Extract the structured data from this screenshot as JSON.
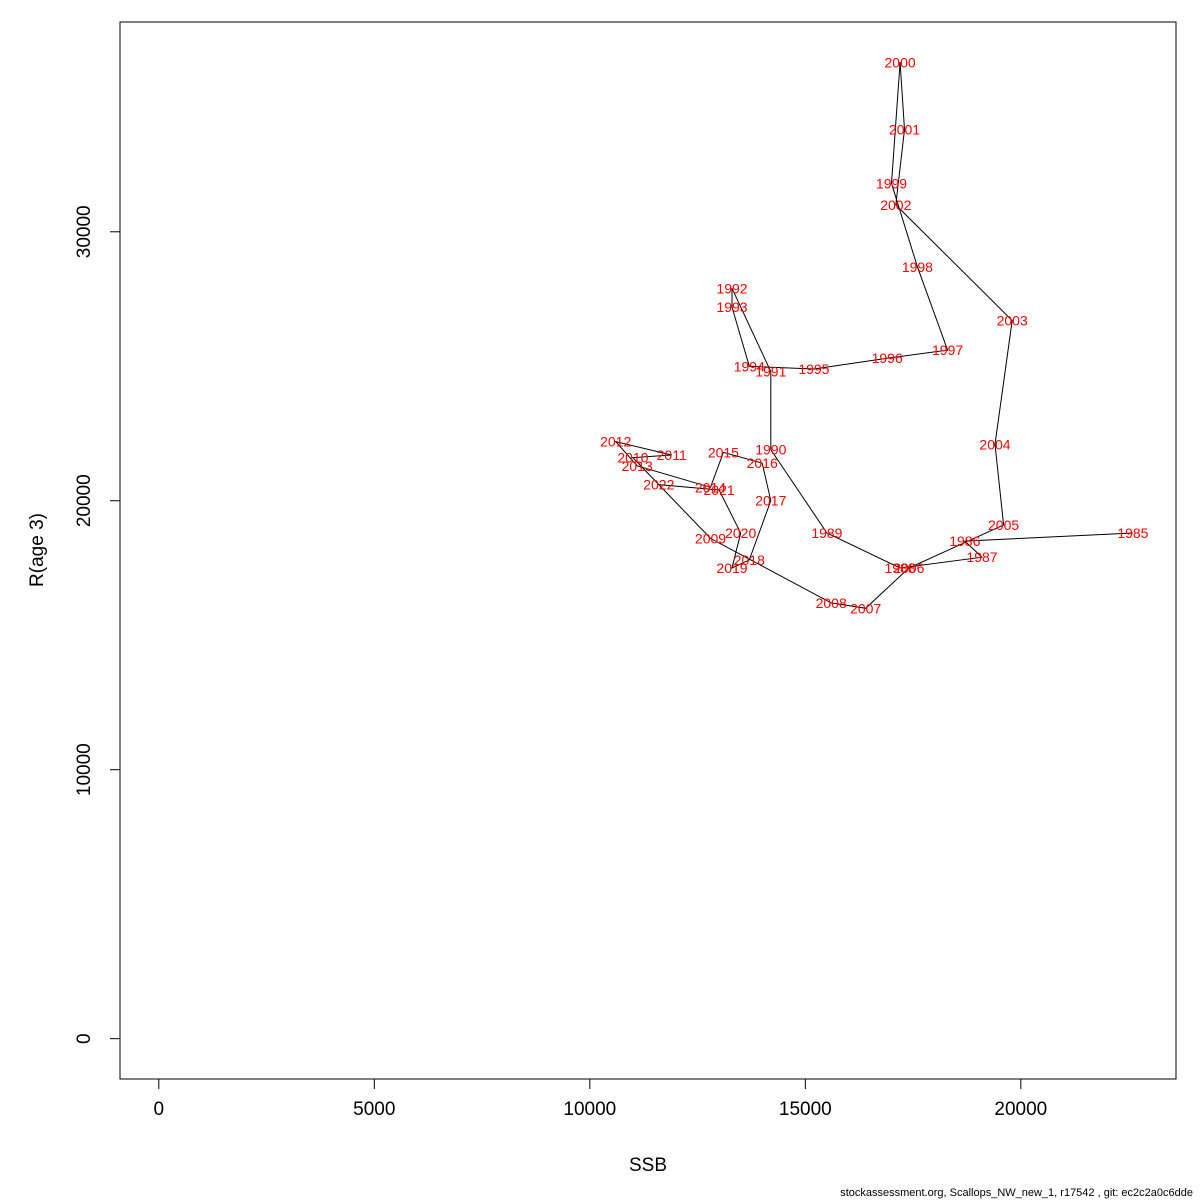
{
  "chart_data": {
    "type": "scatter",
    "xlabel": "SSB",
    "ylabel": "R(age 3)",
    "xlim": [
      -900,
      23600
    ],
    "ylim": [
      -1500,
      37800
    ],
    "xticks": [
      0,
      5000,
      10000,
      15000,
      20000
    ],
    "yticks": [
      0,
      10000,
      20000,
      30000
    ],
    "grid": false,
    "point_label_color": "#ff0000",
    "line_color": "#000000",
    "points": [
      {
        "label": "1985",
        "x": 22600,
        "y": 18800
      },
      {
        "label": "1986",
        "x": 18700,
        "y": 18500
      },
      {
        "label": "1987",
        "x": 19100,
        "y": 17900
      },
      {
        "label": "1988",
        "x": 17200,
        "y": 17500
      },
      {
        "label": "1989",
        "x": 15500,
        "y": 18800
      },
      {
        "label": "1990",
        "x": 14200,
        "y": 21900
      },
      {
        "label": "1991",
        "x": 14200,
        "y": 24800
      },
      {
        "label": "1992",
        "x": 13300,
        "y": 27900
      },
      {
        "label": "1993",
        "x": 13300,
        "y": 27200
      },
      {
        "label": "1994",
        "x": 13700,
        "y": 25000
      },
      {
        "label": "1995",
        "x": 15200,
        "y": 24900
      },
      {
        "label": "1996",
        "x": 16900,
        "y": 25300
      },
      {
        "label": "1997",
        "x": 18300,
        "y": 25600
      },
      {
        "label": "1998",
        "x": 17600,
        "y": 28700
      },
      {
        "label": "1999",
        "x": 17000,
        "y": 31800
      },
      {
        "label": "2000",
        "x": 17200,
        "y": 36300
      },
      {
        "label": "2001",
        "x": 17300,
        "y": 33800
      },
      {
        "label": "2002",
        "x": 17100,
        "y": 31000
      },
      {
        "label": "2003",
        "x": 19800,
        "y": 26700
      },
      {
        "label": "2004",
        "x": 19400,
        "y": 22100
      },
      {
        "label": "2005",
        "x": 19600,
        "y": 19100
      },
      {
        "label": "2006",
        "x": 17400,
        "y": 17500
      },
      {
        "label": "2007",
        "x": 16400,
        "y": 16000
      },
      {
        "label": "2008",
        "x": 15600,
        "y": 16200
      },
      {
        "label": "2009",
        "x": 12800,
        "y": 18600
      },
      {
        "label": "2010",
        "x": 11000,
        "y": 21600
      },
      {
        "label": "2011",
        "x": 11900,
        "y": 21700
      },
      {
        "label": "2012",
        "x": 10600,
        "y": 22200
      },
      {
        "label": "2013",
        "x": 11100,
        "y": 21300
      },
      {
        "label": "2014",
        "x": 12800,
        "y": 20500
      },
      {
        "label": "2015",
        "x": 13100,
        "y": 21800
      },
      {
        "label": "2016",
        "x": 14000,
        "y": 21400
      },
      {
        "label": "2017",
        "x": 14200,
        "y": 20000
      },
      {
        "label": "2018",
        "x": 13700,
        "y": 17800
      },
      {
        "label": "2019",
        "x": 13300,
        "y": 17500
      },
      {
        "label": "2020",
        "x": 13500,
        "y": 18800
      },
      {
        "label": "2021",
        "x": 13000,
        "y": 20400
      },
      {
        "label": "2022",
        "x": 11600,
        "y": 20600
      }
    ]
  },
  "footer": "stockassessment.org, Scallops_NW_new_1, r17542 , git: ec2c2a0c6dde"
}
